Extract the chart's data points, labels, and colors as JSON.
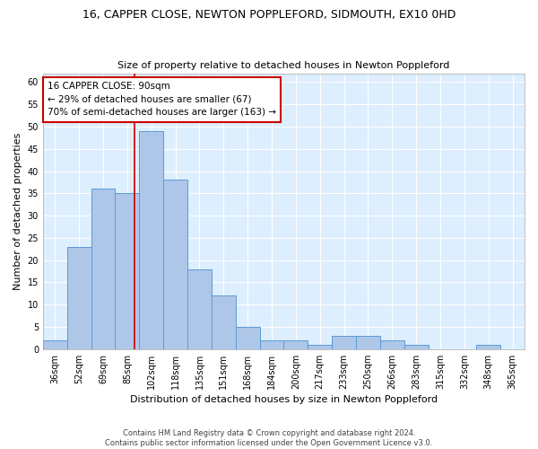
{
  "title": "16, CAPPER CLOSE, NEWTON POPPLEFORD, SIDMOUTH, EX10 0HD",
  "subtitle": "Size of property relative to detached houses in Newton Poppleford",
  "xlabel": "Distribution of detached houses by size in Newton Poppleford",
  "ylabel": "Number of detached properties",
  "categories": [
    "36sqm",
    "52sqm",
    "69sqm",
    "85sqm",
    "102sqm",
    "118sqm",
    "135sqm",
    "151sqm",
    "168sqm",
    "184sqm",
    "200sqm",
    "217sqm",
    "233sqm",
    "250sqm",
    "266sqm",
    "283sqm",
    "315sqm",
    "332sqm",
    "348sqm",
    "365sqm"
  ],
  "values": [
    2,
    23,
    36,
    35,
    49,
    38,
    18,
    12,
    5,
    2,
    2,
    1,
    3,
    3,
    2,
    1,
    0,
    0,
    1,
    0
  ],
  "bar_color": "#aec6e8",
  "bar_edge_color": "#5b9bd5",
  "background_color": "#ddeeff",
  "grid_color": "#ffffff",
  "annotation_text": "16 CAPPER CLOSE: 90sqm\n← 29% of detached houses are smaller (67)\n70% of semi-detached houses are larger (163) →",
  "annotation_box_color": "#ffffff",
  "annotation_box_edge": "#cc0000",
  "vline_color": "#cc0000",
  "ylim": [
    0,
    62
  ],
  "yticks": [
    0,
    5,
    10,
    15,
    20,
    25,
    30,
    35,
    40,
    45,
    50,
    55,
    60
  ],
  "footer1": "Contains HM Land Registry data © Crown copyright and database right 2024.",
  "footer2": "Contains public sector information licensed under the Open Government Licence v3.0.",
  "title_fontsize": 9,
  "subtitle_fontsize": 8,
  "xlabel_fontsize": 8,
  "ylabel_fontsize": 8,
  "tick_fontsize": 7,
  "annotation_fontsize": 7.5
}
